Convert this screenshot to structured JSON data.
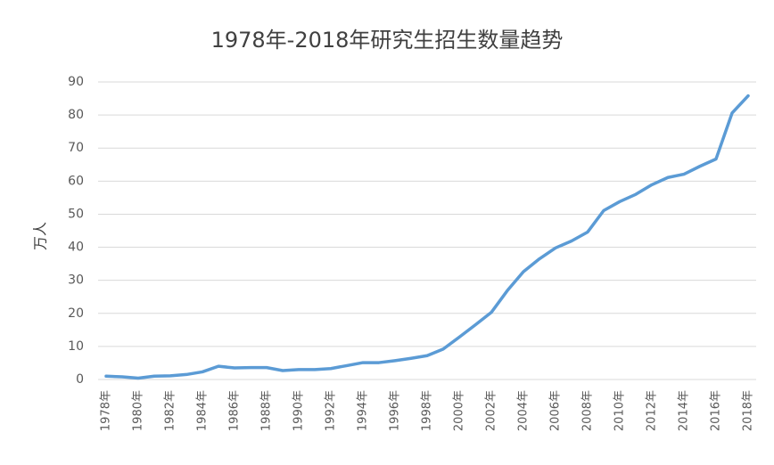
{
  "chart_data": {
    "type": "line",
    "title": "1978年-2018年研究生招生数量趋势",
    "y_label": "万人",
    "categories": [
      "1978年",
      null,
      "1980年",
      null,
      "1982年",
      null,
      "1984年",
      null,
      "1986年",
      null,
      "1988年",
      null,
      "1990年",
      null,
      "1992年",
      null,
      "1994年",
      null,
      "1996年",
      null,
      "1998年",
      null,
      "2000年",
      null,
      "2002年",
      null,
      "2004年",
      null,
      "2006年",
      null,
      "2008年",
      null,
      "2010年",
      null,
      "2012年",
      null,
      "2014年",
      null,
      "2016年",
      null,
      "2018年"
    ],
    "values": [
      1,
      0.8,
      0.4,
      1,
      1.1,
      1.5,
      2.3,
      4,
      3.5,
      3.6,
      3.6,
      2.7,
      3,
      3,
      3.3,
      4.2,
      5.1,
      5.1,
      5.7,
      6.4,
      7.2,
      9.2,
      12.8,
      16.5,
      20.3,
      26.9,
      32.6,
      36.5,
      39.8,
      41.9,
      44.6,
      51.1,
      53.8,
      56,
      58.9,
      61.1,
      62.1,
      64.5,
      66.7,
      80.6,
      85.8
    ],
    "color": "#5b9bd5",
    "ylim": [
      0,
      90
    ],
    "yticks": [
      0,
      10,
      20,
      30,
      40,
      50,
      60,
      70,
      80,
      90
    ],
    "grid": true
  }
}
